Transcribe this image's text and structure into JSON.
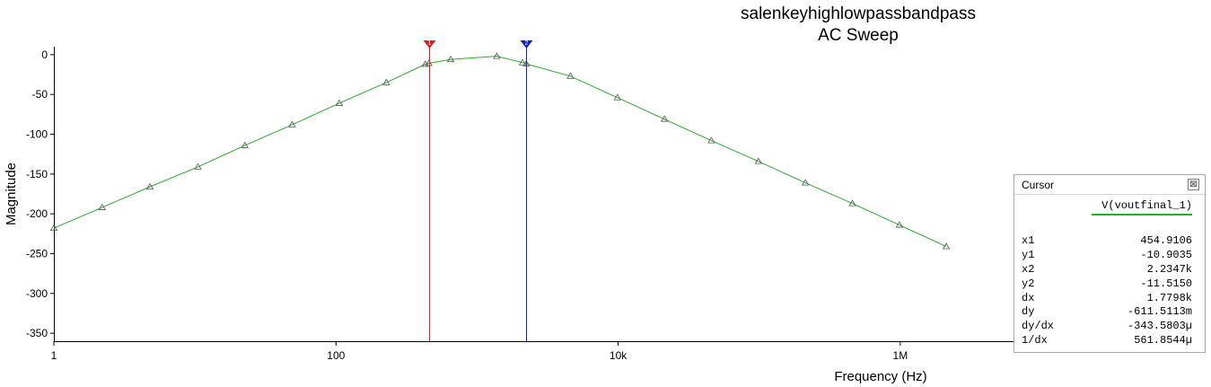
{
  "chart_data": {
    "type": "line",
    "title": "salenkeyhighlowpassbandpass",
    "subtitle": "AC Sweep",
    "xlabel": "Frequency (Hz)",
    "ylabel": "Magnitude",
    "xscale": "log",
    "xlim": [
      1,
      10000000
    ],
    "ylim": [
      -360,
      10
    ],
    "x_tick_labels": [
      {
        "x": 1,
        "label": "1"
      },
      {
        "x": 100,
        "label": "100"
      },
      {
        "x": 10000,
        "label": "10k"
      },
      {
        "x": 1000000,
        "label": "1M"
      }
    ],
    "y_tick_labels": [
      {
        "y": 0,
        "label": "0"
      },
      {
        "y": -50,
        "label": "-50"
      },
      {
        "y": -100,
        "label": "-100"
      },
      {
        "y": -150,
        "label": "-150"
      },
      {
        "y": -200,
        "label": "-200"
      },
      {
        "y": -250,
        "label": "-250"
      },
      {
        "y": -300,
        "label": "-300"
      },
      {
        "y": -350,
        "label": "-350"
      }
    ],
    "grid": false,
    "series": [
      {
        "color": "#2fa82f",
        "marker": "triangle",
        "x": [
          1,
          2.2,
          4.8,
          10.5,
          22.6,
          48.9,
          105.4,
          227.5,
          430,
          455,
          650,
          1380,
          2100,
          2235,
          4590,
          9880,
          21300,
          45800,
          98700,
          212500,
          457600,
          985400,
          2120000
        ],
        "y": [
          -218,
          -192,
          -166,
          -141,
          -114,
          -88,
          -61,
          -35,
          -12,
          -10.9,
          -6,
          -2,
          -10,
          -11.5,
          -27,
          -54,
          -81,
          -108,
          -134,
          -161,
          -187,
          -214,
          -241
        ]
      }
    ],
    "cursors": [
      {
        "id": "1",
        "x": 454.9106,
        "color": "#e02020"
      },
      {
        "id": "2",
        "x": 2234.7,
        "color": "#1020c0"
      }
    ]
  },
  "cursor_panel": {
    "title": "Cursor",
    "close_symbol": "⊠",
    "column_header": "V(voutfinal_1)",
    "rows": [
      {
        "label": "x1",
        "value": "454.9106"
      },
      {
        "label": "y1",
        "value": "-10.9035"
      },
      {
        "label": "x2",
        "value": "2.2347k"
      },
      {
        "label": "y2",
        "value": "-11.5150"
      },
      {
        "label": "dx",
        "value": "1.7798k"
      },
      {
        "label": "dy",
        "value": "-611.5113m"
      },
      {
        "label": "dy/dx",
        "value": "-343.5803µ"
      },
      {
        "label": "1/dx",
        "value": "561.8544µ"
      }
    ]
  }
}
